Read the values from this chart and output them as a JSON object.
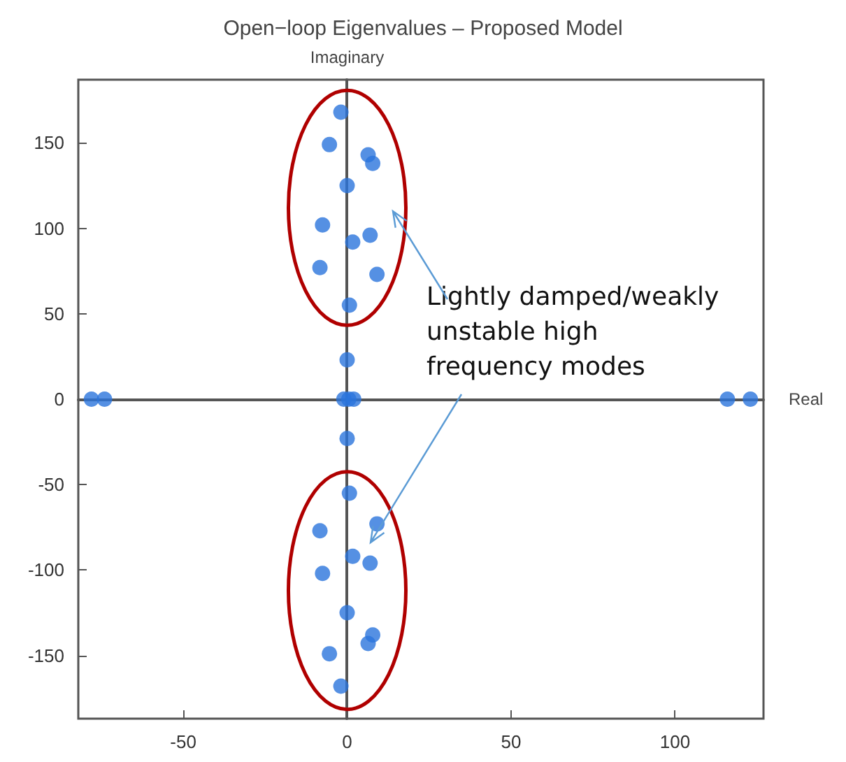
{
  "chart_data": {
    "type": "scatter",
    "title": "Open−loop Eigenvalues – Proposed Model",
    "xlabel": "Real",
    "ylabel": "Imaginary",
    "x": [
      -1.9,
      -5.4,
      6.4,
      7.8,
      0,
      -7.5,
      1.7,
      7,
      -8.3,
      9.1,
      0.7,
      0,
      -1.9,
      -5.4,
      6.4,
      7.8,
      0,
      -7.5,
      1.7,
      7,
      -8.3,
      9.1,
      0.7,
      0,
      -1,
      0.5,
      2,
      -78,
      -74,
      116,
      123
    ],
    "values": [
      168,
      149,
      143,
      138,
      125,
      102,
      92,
      96,
      77,
      73,
      55,
      23,
      -168,
      -149,
      -143,
      -138,
      -125,
      -102,
      -92,
      -96,
      -77,
      -73,
      -55,
      -23,
      0,
      0,
      0,
      0,
      0,
      0,
      0
    ],
    "color": "#2a74dc",
    "marker": "circle",
    "xlim": [
      -82,
      127
    ],
    "ylim": [
      -187,
      187
    ],
    "xticks": [
      -50,
      0,
      50,
      100
    ],
    "yticks": [
      -150,
      -100,
      -50,
      0,
      50,
      100,
      150
    ],
    "annotations": [
      "Lightly damped/weakly unstable high frequency modes"
    ]
  }
}
